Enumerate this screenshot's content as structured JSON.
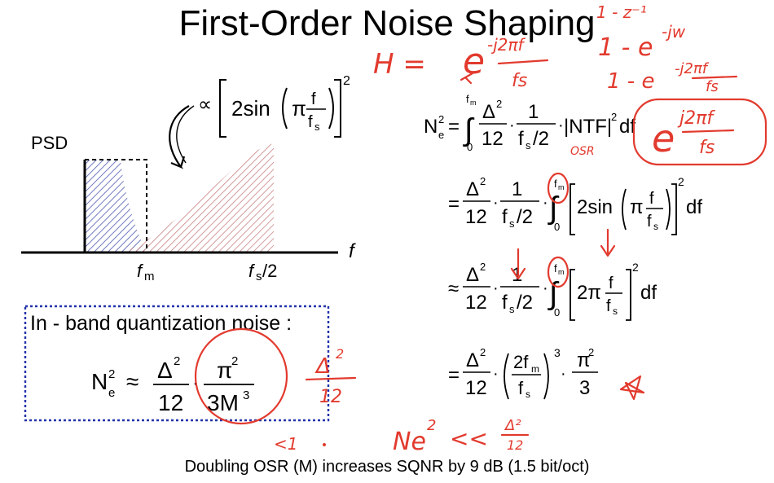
{
  "slide": {
    "title": "First-Order Noise Shaping",
    "footer": "Doubling OSR (M) increases SQNR by 9 dB (1.5 bit/oct)"
  },
  "plot": {
    "ylabel": "PSD",
    "xlabel": "f",
    "tick_fm": "m",
    "tick_fs_sub": "s",
    "tick_fs_over": "/2"
  },
  "shaping_formula": {
    "prop": "∝",
    "body": "2sin",
    "pi": "π",
    "num": "f",
    "den": "f",
    "den_sub": "s",
    "exp": "2"
  },
  "inband_box": {
    "heading": "In - band quantization noise :",
    "lhs": "N",
    "lhs_sup": "2",
    "lhs_sub": "e",
    "approx": "≈",
    "num1": "Δ",
    "num1_sup": "2",
    "den1": "12",
    "num2": "π",
    "num2_sup": "2",
    "den2": "3M",
    "den2_sup": "3"
  },
  "derivation": {
    "lhs": "N",
    "lhs_sup": "2",
    "lhs_sub": "e",
    "eq": "=",
    "approx": "≈",
    "int_upper": "f",
    "int_upper_sub": "m",
    "int_lower": "0",
    "delta": "Δ",
    "sq": "2",
    "twelve": "12",
    "one": "1",
    "fs_half_f": "f",
    "fs_half_sub": "s",
    "fs_half_rest": "/2",
    "ntf": "|NTF|",
    "df": "df",
    "two_sin": "2sin",
    "pi": "π",
    "two_pi": "2π",
    "f": "f",
    "two_fm": "2f",
    "cube": "3",
    "three": "3",
    "dot": "·"
  },
  "annotations": {
    "h_eq": "H =",
    "e1": "e",
    "e1_exp": "-j2πf",
    "e1_den": "fs",
    "z_line": "1 - z⁻¹",
    "e_jw": "1 - e",
    "e_jw_exp": "-jw",
    "e_line3": "1 - e",
    "e3_exp": "-j2πf",
    "e3_den": "fs",
    "osr": "OSR",
    "boxed_e": "e",
    "boxed_exp": "j2πf",
    "boxed_den": "fs",
    "delta_sq": "Δ",
    "delta_sq_sup": "2",
    "delta_sq_den": "12",
    "ne_text": "Ne",
    "ne_sup": "2",
    "ll": "<<",
    "small_delta": "Δ²",
    "small_den": "12",
    "lt_one": "<1"
  },
  "colors": {
    "ink": "#e23a2e",
    "inband_hatch": "#4b57b0",
    "outband_hatch": "#c98484",
    "box_border": "#2233aa"
  }
}
